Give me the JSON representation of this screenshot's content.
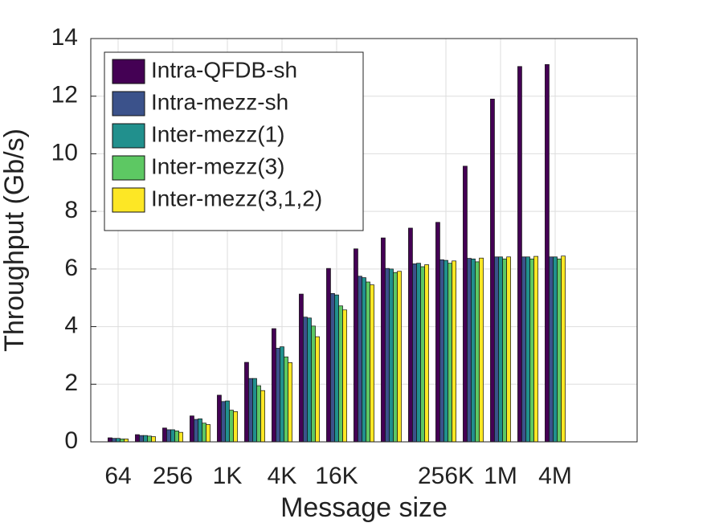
{
  "chart_data": {
    "type": "bar",
    "x_label": "Message size",
    "y_label": "Throughput (Gb/s)",
    "categories": [
      "64",
      null,
      "256",
      null,
      "1K",
      null,
      "4K",
      null,
      "16K",
      null,
      null,
      null,
      "256K",
      null,
      "1M",
      null,
      "4M"
    ],
    "series": [
      {
        "name": "Intra-QFDB-sh",
        "color": "#440154",
        "values": [
          0.14,
          0.25,
          0.48,
          0.9,
          1.62,
          2.76,
          3.93,
          5.13,
          6.02,
          6.7,
          7.08,
          7.42,
          7.62,
          9.57,
          11.9,
          13.03,
          13.1
        ]
      },
      {
        "name": "Intra-mezz-sh",
        "color": "#3b528b",
        "values": [
          0.12,
          0.22,
          0.42,
          0.78,
          1.4,
          2.2,
          3.25,
          4.33,
          5.15,
          5.75,
          6.02,
          6.18,
          6.32,
          6.37,
          6.42,
          6.42,
          6.42
        ]
      },
      {
        "name": "Inter-mezz(1)",
        "color": "#21908d",
        "values": [
          0.12,
          0.22,
          0.42,
          0.8,
          1.42,
          2.2,
          3.3,
          4.3,
          5.1,
          5.7,
          6.0,
          6.2,
          6.3,
          6.35,
          6.42,
          6.42,
          6.42
        ]
      },
      {
        "name": "Inter-mezz(3)",
        "color": "#5dc863",
        "values": [
          0.1,
          0.2,
          0.38,
          0.65,
          1.1,
          1.95,
          2.95,
          4.02,
          4.72,
          5.55,
          5.88,
          6.08,
          6.2,
          6.25,
          6.35,
          6.35,
          6.35
        ]
      },
      {
        "name": "Inter-mezz(3,1,2)",
        "color": "#fde725",
        "values": [
          0.1,
          0.18,
          0.33,
          0.6,
          1.05,
          1.78,
          2.75,
          3.65,
          4.58,
          5.45,
          5.92,
          6.15,
          6.28,
          6.38,
          6.42,
          6.44,
          6.45
        ]
      }
    ],
    "ylim": [
      0,
      14
    ],
    "yticks": [
      0,
      2,
      4,
      6,
      8,
      10,
      12,
      14
    ],
    "grid": true,
    "legend": "upper left"
  }
}
